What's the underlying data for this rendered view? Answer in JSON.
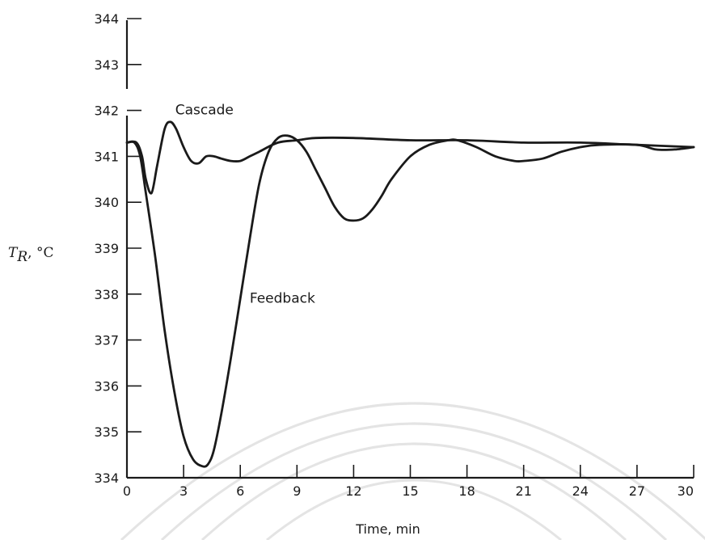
{
  "chart_data": {
    "type": "line",
    "title": "",
    "xlabel": "Time,  min",
    "ylabel": {
      "symbol": "T",
      "subscript": "R",
      "unit": ", °C"
    },
    "xlim": [
      0,
      30
    ],
    "ylim": [
      334,
      344
    ],
    "xticks": [
      0,
      3,
      6,
      9,
      12,
      15,
      18,
      21,
      24,
      27,
      30
    ],
    "yticks": [
      334,
      335,
      336,
      337,
      338,
      339,
      340,
      341,
      342,
      343,
      344
    ],
    "grid": false,
    "series": [
      {
        "name": "Cascade",
        "x": [
          0,
          0.5,
          0.8,
          1.0,
          1.3,
          1.6,
          2.0,
          2.3,
          2.6,
          3.0,
          3.4,
          3.8,
          4.2,
          4.6,
          5.0,
          5.5,
          6.0,
          6.5,
          7.0,
          8.0,
          9.0,
          10.0,
          12.0,
          15.0,
          18.0,
          21.0,
          24.0,
          27.0,
          30.0
        ],
        "y": [
          341.3,
          341.3,
          341.0,
          340.5,
          340.2,
          340.8,
          341.6,
          341.75,
          341.6,
          341.2,
          340.9,
          340.85,
          341.0,
          341.0,
          340.95,
          340.9,
          340.9,
          341.0,
          341.1,
          341.3,
          341.35,
          341.4,
          341.4,
          341.35,
          341.35,
          341.3,
          341.3,
          341.25,
          341.2
        ]
      },
      {
        "name": "Feedback",
        "x": [
          0,
          0.4,
          0.7,
          1.0,
          1.5,
          2.0,
          2.5,
          3.0,
          3.5,
          4.0,
          4.3,
          4.6,
          5.0,
          5.5,
          6.0,
          6.5,
          7.0,
          7.5,
          8.0,
          8.5,
          9.0,
          9.5,
          10.0,
          10.5,
          11.0,
          11.5,
          12.0,
          12.5,
          13.0,
          13.5,
          14.0,
          15.0,
          16.0,
          17.0,
          17.5,
          18.5,
          19.5,
          20.5,
          21.0,
          22.0,
          23.0,
          24.0,
          25.0,
          27.0,
          28.0,
          29.0,
          30.0
        ],
        "y": [
          341.3,
          341.3,
          341.0,
          340.2,
          338.8,
          337.2,
          335.9,
          334.9,
          334.4,
          334.25,
          334.3,
          334.6,
          335.4,
          336.6,
          337.9,
          339.2,
          340.4,
          341.1,
          341.4,
          341.45,
          341.35,
          341.1,
          340.7,
          340.3,
          339.9,
          339.65,
          339.6,
          339.65,
          339.85,
          340.15,
          340.5,
          341.0,
          341.25,
          341.35,
          341.35,
          341.2,
          341.0,
          340.9,
          340.9,
          340.95,
          341.1,
          341.2,
          341.25,
          341.25,
          341.15,
          341.15,
          341.2
        ]
      }
    ],
    "annotations": [
      {
        "text": "Cascade",
        "x": 2.0,
        "y": 342.0
      },
      {
        "text": "Feedback",
        "x": 6.5,
        "y": 337.9
      }
    ]
  }
}
